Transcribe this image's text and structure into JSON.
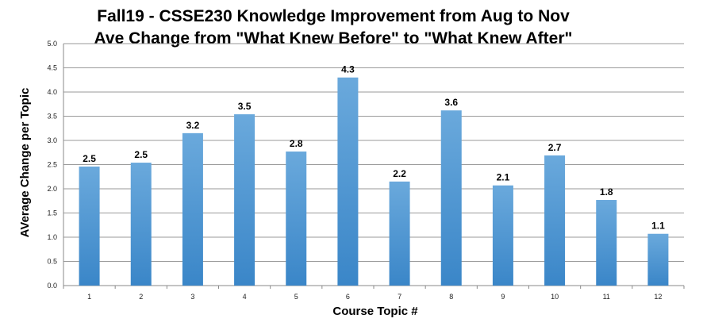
{
  "chart_data": {
    "type": "bar",
    "title": "Fall19 - CSSE230 Knowledge Improvement from Aug to Nov",
    "subtitle": "Ave Change from \"What Knew Before\" to \"What Knew After\"",
    "xlabel": "Course Topic #",
    "ylabel": "AVerage Change per Topic",
    "categories": [
      "1",
      "2",
      "3",
      "4",
      "5",
      "6",
      "7",
      "8",
      "9",
      "10",
      "11",
      "12"
    ],
    "values": [
      2.46,
      2.54,
      3.15,
      3.54,
      2.77,
      4.3,
      2.15,
      3.62,
      2.07,
      2.69,
      1.77,
      1.07
    ],
    "data_labels": [
      "2.5",
      "2.5",
      "3.2",
      "3.5",
      "2.8",
      "4.3",
      "2.2",
      "3.6",
      "2.1",
      "2.7",
      "1.8",
      "1.1"
    ],
    "ylim": [
      0,
      5
    ],
    "yticks": [
      "0.0",
      "0.5",
      "1.0",
      "1.5",
      "2.0",
      "2.5",
      "3.0",
      "3.5",
      "4.0",
      "4.5",
      "5.0"
    ],
    "grid": true,
    "legend": "none",
    "colors": {
      "bar_top": "#6aa9dc",
      "bar_bottom": "#3a86c8",
      "grid": "#9a9a9a"
    }
  }
}
